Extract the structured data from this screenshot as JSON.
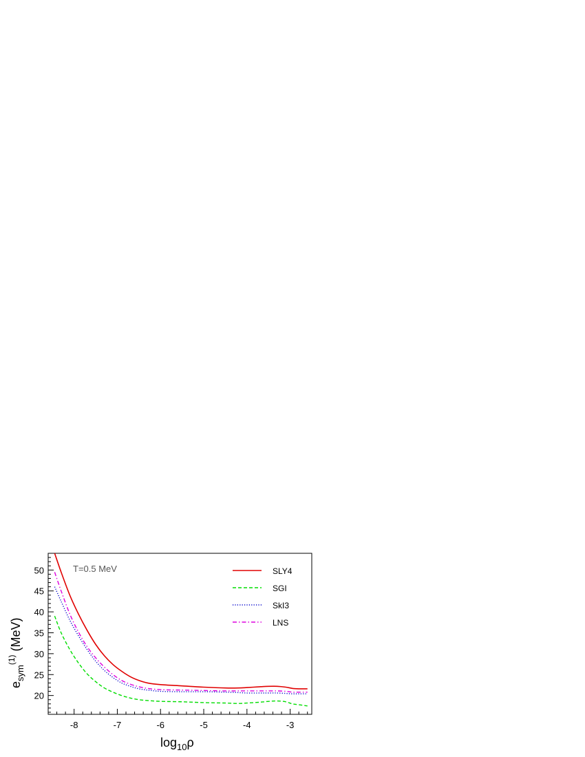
{
  "chart_data": {
    "type": "line",
    "title": "",
    "annotation": "T=0.5 MeV",
    "xlabel": {
      "base": "log",
      "sub": "10",
      "tail": "ρ"
    },
    "ylabel": {
      "base": "e",
      "sub": "sym",
      "sup": "(1)",
      "tail": " (MeV)"
    },
    "xlim": [
      -8.6,
      -2.5
    ],
    "ylim": [
      15.5,
      54
    ],
    "xticks": [
      -8,
      -7,
      -6,
      -5,
      -4,
      -3
    ],
    "xtick_labels": [
      "-8",
      "-7",
      "-6",
      "-5",
      "-4",
      "-3"
    ],
    "yticks": [
      20,
      25,
      30,
      35,
      40,
      45,
      50
    ],
    "ytick_labels": [
      "20",
      "25",
      "30",
      "35",
      "40",
      "45",
      "50"
    ],
    "grid": false,
    "legend_position": "top-right",
    "series": [
      {
        "name": "SLY4",
        "color": "#e00000",
        "style": "solid",
        "x": [
          -8.45,
          -8.3,
          -8.1,
          -7.9,
          -7.7,
          -7.5,
          -7.3,
          -7.1,
          -6.9,
          -6.7,
          -6.5,
          -6.3,
          -6.0,
          -5.5,
          -5.0,
          -4.5,
          -4.2,
          -4.0,
          -3.7,
          -3.5,
          -3.3,
          -3.1,
          -2.95,
          -2.8,
          -2.6
        ],
        "y": [
          54.0,
          49.5,
          44.0,
          39.5,
          35.6,
          32.2,
          29.5,
          27.4,
          25.8,
          24.5,
          23.6,
          23.0,
          22.6,
          22.3,
          22.0,
          21.8,
          21.8,
          21.9,
          22.1,
          22.2,
          22.2,
          22.0,
          21.7,
          21.6,
          21.6
        ]
      },
      {
        "name": "SGI",
        "color": "#00dd00",
        "style": "dashed",
        "x": [
          -8.45,
          -8.3,
          -8.1,
          -7.9,
          -7.7,
          -7.5,
          -7.3,
          -7.1,
          -6.9,
          -6.7,
          -6.5,
          -6.3,
          -6.0,
          -5.5,
          -5.0,
          -4.5,
          -4.2,
          -4.0,
          -3.7,
          -3.5,
          -3.3,
          -3.1,
          -2.95,
          -2.8,
          -2.6
        ],
        "y": [
          39.0,
          35.0,
          31.0,
          27.8,
          25.2,
          23.3,
          21.8,
          20.8,
          20.0,
          19.4,
          19.0,
          18.8,
          18.6,
          18.5,
          18.3,
          18.2,
          18.1,
          18.2,
          18.4,
          18.6,
          18.7,
          18.5,
          18.0,
          17.8,
          17.5
        ]
      },
      {
        "name": "SkI3",
        "color": "#0000cc",
        "style": "dotted",
        "x": [
          -8.45,
          -8.3,
          -8.1,
          -7.9,
          -7.7,
          -7.5,
          -7.3,
          -7.1,
          -6.9,
          -6.7,
          -6.5,
          -6.3,
          -6.0,
          -5.5,
          -5.0,
          -4.5,
          -4.2,
          -4.0,
          -3.7,
          -3.5,
          -3.3,
          -3.1,
          -2.95,
          -2.8,
          -2.6
        ],
        "y": [
          46.0,
          42.5,
          38.0,
          34.3,
          31.0,
          28.2,
          26.0,
          24.3,
          23.0,
          22.2,
          21.6,
          21.3,
          21.0,
          20.9,
          20.9,
          20.8,
          20.7,
          20.6,
          20.6,
          20.6,
          20.6,
          20.5,
          20.4,
          20.4,
          20.4
        ]
      },
      {
        "name": "LNS",
        "color": "#dd00dd",
        "style": "dashdot",
        "x": [
          -8.45,
          -8.3,
          -8.1,
          -7.9,
          -7.7,
          -7.5,
          -7.3,
          -7.1,
          -6.9,
          -6.7,
          -6.5,
          -6.3,
          -6.0,
          -5.5,
          -5.0,
          -4.5,
          -4.2,
          -4.0,
          -3.7,
          -3.5,
          -3.3,
          -3.1,
          -2.95,
          -2.8,
          -2.6
        ],
        "y": [
          49.5,
          45.0,
          39.5,
          35.2,
          31.7,
          29.0,
          26.8,
          25.0,
          23.6,
          22.7,
          22.1,
          21.7,
          21.4,
          21.3,
          21.2,
          21.1,
          21.1,
          21.1,
          21.1,
          21.1,
          21.1,
          21.0,
          20.8,
          20.8,
          20.8
        ]
      }
    ]
  }
}
